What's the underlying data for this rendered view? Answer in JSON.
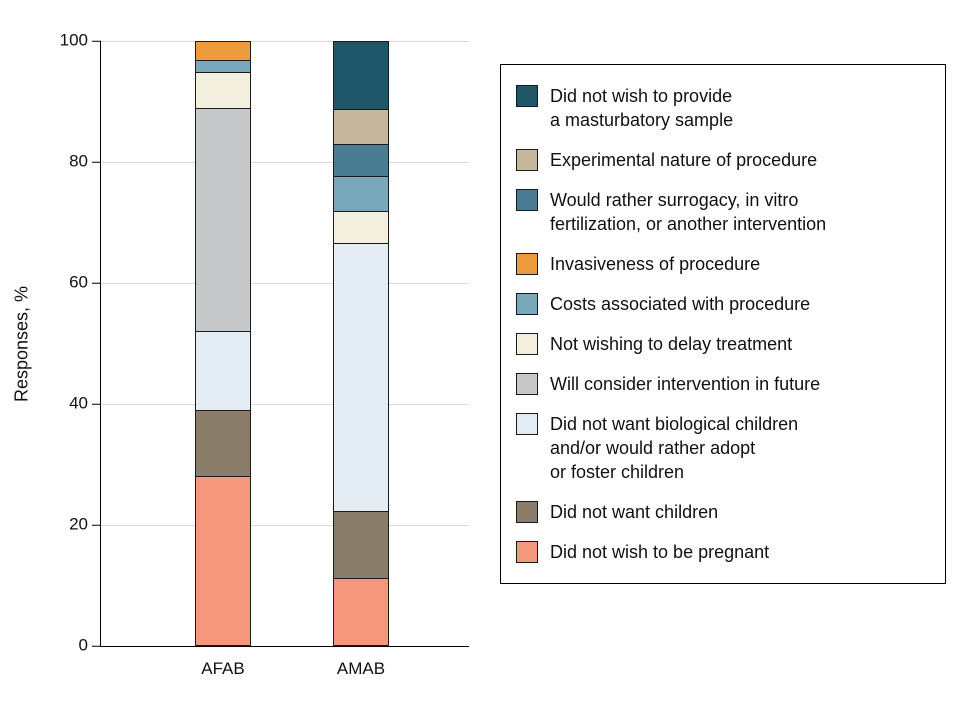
{
  "chart_data": {
    "type": "bar",
    "stacked": true,
    "title": "",
    "ylabel": "Responses, %",
    "xlabel": "",
    "ylim": [
      0,
      100
    ],
    "yticks": [
      0,
      20,
      40,
      60,
      80,
      100
    ],
    "grid": "horizontal",
    "legend_position": "right",
    "categories": [
      "AFAB",
      "AMAB"
    ],
    "series": [
      {
        "name": "Did not wish to provide a masturbatory sample",
        "legend_label": "Did not wish to provide\na masturbatory sample",
        "color": "#20566a",
        "values": [
          0,
          12.5
        ]
      },
      {
        "name": "Experimental nature of procedure",
        "legend_label": "Experimental nature of procedure",
        "color": "#c5b79b",
        "values": [
          0,
          6.5
        ]
      },
      {
        "name": "Would rather surrogacy, in vitro fertilization, or another intervention",
        "legend_label": "Would rather surrogacy, in vitro\nfertilization, or another intervention",
        "color": "#4a7c94",
        "values": [
          0,
          6
        ]
      },
      {
        "name": "Invasiveness of procedure",
        "legend_label": "Invasiveness of procedure",
        "color": "#ec9c3d",
        "values": [
          3,
          0
        ]
      },
      {
        "name": "Costs associated with procedure",
        "legend_label": "Costs associated with procedure",
        "color": "#79a8bd",
        "values": [
          2,
          6.5
        ]
      },
      {
        "name": "Not wishing to delay treatment",
        "legend_label": "Not wishing to delay treatment",
        "color": "#f2efde",
        "values": [
          6,
          6
        ]
      },
      {
        "name": "Will consider intervention in future",
        "legend_label": "Will consider intervention in future",
        "color": "#c7c8ca",
        "values": [
          37,
          0
        ]
      },
      {
        "name": "Did not want biological children and/or would rather adopt or foster children",
        "legend_label": "Did not want biological children\nand/or would rather adopt\nor foster children",
        "color": "#e4edf3",
        "values": [
          13,
          50
        ]
      },
      {
        "name": "Did not want children",
        "legend_label": "Did not want children",
        "color": "#8a7d6a",
        "values": [
          11,
          12.5
        ]
      },
      {
        "name": "Did not wish to be pregnant",
        "legend_label": "Did not wish to be pregnant",
        "color": "#f5977d",
        "values": [
          28,
          12.5
        ]
      }
    ]
  }
}
